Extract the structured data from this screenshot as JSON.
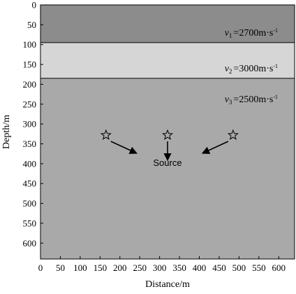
{
  "figure": {
    "xlabel": "Distance/m",
    "ylabel": "Depth/m",
    "x_ticks": [
      "0",
      "50",
      "100",
      "150",
      "200",
      "250",
      "300",
      "350",
      "400",
      "450",
      "500",
      "550",
      "600"
    ],
    "y_ticks": [
      "0",
      "50",
      "100",
      "150",
      "200",
      "250",
      "300",
      "350",
      "400",
      "450",
      "500",
      "550",
      "600"
    ]
  },
  "model": {
    "x_range_m": [
      0,
      640
    ],
    "depth_range_m": [
      0,
      640
    ],
    "layers": [
      {
        "name": "layer-1",
        "top_m": 0,
        "bottom_m": 95,
        "color": "#8c8c8c",
        "label": {
          "sym": "v",
          "sub": "1",
          "value": "=2700m·s",
          "exp": "-1"
        }
      },
      {
        "name": "layer-2",
        "top_m": 95,
        "bottom_m": 185,
        "color": "#d6d6d6",
        "label": {
          "sym": "v",
          "sub": "2",
          "value": "=3000m·s",
          "exp": "-1"
        }
      },
      {
        "name": "layer-3",
        "top_m": 185,
        "bottom_m": 640,
        "color": "#a9a9a9",
        "label": {
          "sym": "v",
          "sub": "3",
          "value": "=2500m·s",
          "exp": "-1"
        }
      }
    ],
    "sources": [
      {
        "name": "source-left",
        "distance_m": 165,
        "depth_m": 328
      },
      {
        "name": "source-center",
        "distance_m": 320,
        "depth_m": 328
      },
      {
        "name": "source-right",
        "distance_m": 485,
        "depth_m": 328
      }
    ],
    "source_label": "Source"
  }
}
